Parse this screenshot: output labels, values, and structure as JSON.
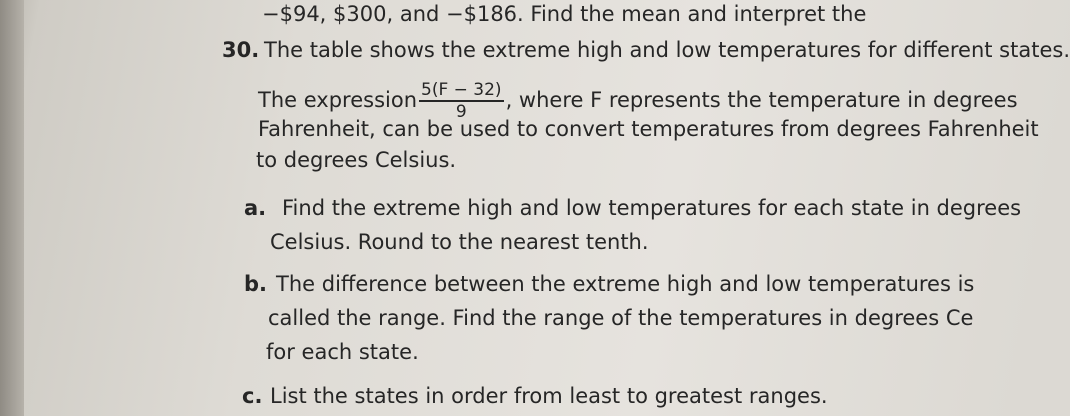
{
  "top_line": "−$94, $300, and −$186. Find the mean and interpret the",
  "problem": {
    "number": "30.",
    "lines": [
      "The table shows the extreme high and low temperatures for different states.",
      "The expression",
      ", where F represents the temperature in degrees",
      "Fahrenheit, can be used to convert temperatures from degrees Fahrenheit",
      "to degrees Celsius."
    ],
    "fraction": {
      "numerator": "5(F − 32)",
      "denominator": "9"
    }
  },
  "parts": [
    {
      "label": "a.",
      "lines": [
        "Find the extreme high and low temperatures for each state in degrees",
        "Celsius. Round to the nearest tenth."
      ]
    },
    {
      "label": "b.",
      "lines": [
        "The difference between the extreme high and low temperatures is",
        "called the range. Find the range of the temperatures in degrees Ce",
        "for each state."
      ]
    },
    {
      "label": "c.",
      "lines": [
        "List the states in order from least to greatest ranges."
      ]
    }
  ]
}
